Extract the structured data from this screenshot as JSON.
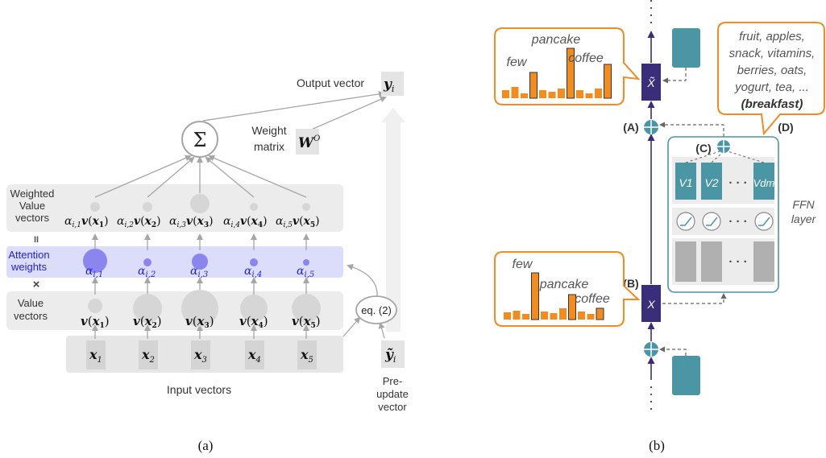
{
  "panel_a": {
    "caption": "(a)",
    "output_label": "Output vector",
    "output_symbol": "y",
    "output_sub": "i",
    "sum_symbol": "Σ",
    "weight_label_1": "Weight",
    "weight_label_2": "matrix",
    "weight_symbol": "W",
    "weight_sup": "O",
    "weighted_label": [
      "Weighted",
      "Value",
      "vectors"
    ],
    "weighted_terms": [
      "α",
      "v",
      "x"
    ],
    "equals": "II",
    "attention_label": [
      "Attention",
      "weights"
    ],
    "attention_terms": [
      {
        "base": "α",
        "sub": "i,1"
      },
      {
        "base": "α",
        "sub": "i,2"
      },
      {
        "base": "α",
        "sub": "i,3"
      },
      {
        "base": "α",
        "sub": "i,4"
      },
      {
        "base": "α",
        "sub": "i,5"
      }
    ],
    "times": "×",
    "value_label": [
      "Value",
      "vectors"
    ],
    "value_terms": [
      "v(x1)",
      "v(x2)",
      "v(x3)",
      "v(x4)",
      "v(x5)"
    ],
    "input_symbols": [
      {
        "base": "x",
        "sub": "1"
      },
      {
        "base": "x",
        "sub": "2"
      },
      {
        "base": "x",
        "sub": "3"
      },
      {
        "base": "x",
        "sub": "4"
      },
      {
        "base": "x",
        "sub": "5"
      }
    ],
    "input_label": "Input vectors",
    "eq_label": "eq. (2)",
    "pre_symbol": "ỹ",
    "pre_sub": "i",
    "pre_label": [
      "Pre-",
      "update",
      "vector"
    ]
  },
  "panel_b": {
    "caption": "(b)",
    "top_bubble_words": [
      "pancake",
      "few",
      "coffee"
    ],
    "bottom_bubble_words": [
      "few",
      "pancake",
      "coffee"
    ],
    "concept_words": [
      "fruit, apples,",
      "snack, vitamins,",
      "berries, oats,",
      "yogurt, tea, ...",
      "(breakfast)"
    ],
    "label_a": "(A)",
    "label_b": "(B)",
    "label_c": "(C)",
    "label_d": "(D)",
    "x_tilde": "X̃",
    "x_plain": "X",
    "value_vectors": [
      "V1",
      "V2",
      "Vdm"
    ],
    "ellipsis": "· · ·",
    "ffn_label": [
      "FFN",
      "layer"
    ]
  },
  "colors": {
    "orange": "#f28c1e",
    "teal": "#4b96a4",
    "navy": "#3a2d7a",
    "attention_blue": "#8b85f0",
    "attention_text": "#2222dd",
    "panel_grey": "#ececec"
  }
}
